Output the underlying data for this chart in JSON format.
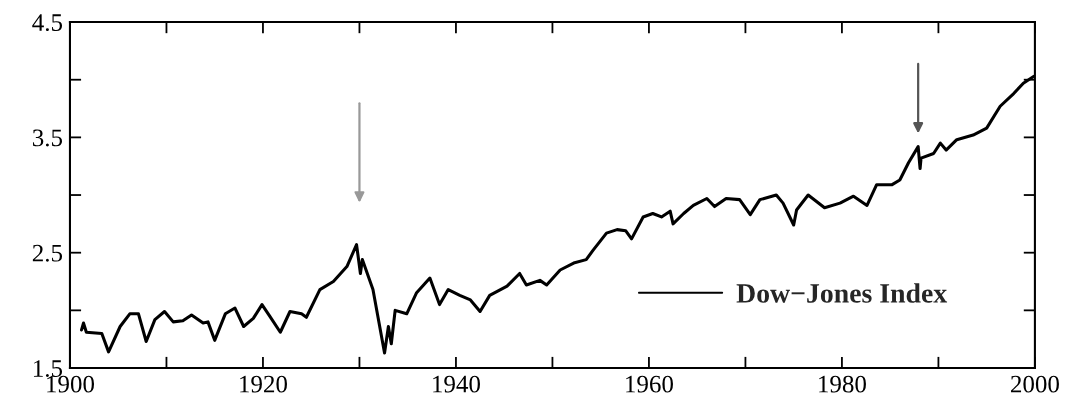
{
  "chart_data": {
    "type": "line",
    "x": [
      1901.2,
      1901.4,
      1901.7,
      1903.3,
      1904.0,
      1905.2,
      1906.2,
      1907.1,
      1907.9,
      1908.8,
      1909.8,
      1910.7,
      1911.7,
      1912.6,
      1913.8,
      1914.3,
      1915.0,
      1916.1,
      1917.1,
      1918.0,
      1919.0,
      1919.9,
      1920.7,
      1921.8,
      1922.8,
      1924.0,
      1924.5,
      1925.9,
      1927.3,
      1928.7,
      1929.7,
      1930.1,
      1930.3,
      1931.4,
      1932.6,
      1933.0,
      1933.3,
      1933.7,
      1934.9,
      1935.9,
      1937.3,
      1938.3,
      1939.2,
      1940.4,
      1941.5,
      1942.5,
      1943.5,
      1945.3,
      1946.6,
      1947.3,
      1948.7,
      1949.4,
      1950.8,
      1952.2,
      1953.5,
      1954.2,
      1955.6,
      1956.7,
      1957.6,
      1958.2,
      1959.4,
      1960.4,
      1961.3,
      1962.2,
      1962.5,
      1963.6,
      1964.6,
      1966.0,
      1966.8,
      1968.0,
      1969.4,
      1970.5,
      1971.5,
      1973.2,
      1973.9,
      1975.0,
      1975.3,
      1976.5,
      1978.2,
      1979.8,
      1981.2,
      1982.6,
      1983.6,
      1985.2,
      1986.0,
      1986.9,
      1987.9,
      1988.1,
      1988.2,
      1989.5,
      1990.2,
      1990.8,
      1991.9,
      1993.6,
      1995.0,
      1996.4,
      1997.8,
      1998.8,
      1999.9
    ],
    "series": [
      {
        "name": "Dow−Jones Index",
        "color": "#000000",
        "values": [
          1.83,
          1.89,
          1.81,
          1.8,
          1.64,
          1.86,
          1.97,
          1.97,
          1.73,
          1.92,
          1.99,
          1.9,
          1.91,
          1.96,
          1.89,
          1.9,
          1.74,
          1.97,
          2.02,
          1.86,
          1.93,
          2.05,
          1.95,
          1.81,
          1.99,
          1.97,
          1.94,
          2.18,
          2.25,
          2.38,
          2.57,
          2.32,
          2.44,
          2.18,
          1.63,
          1.86,
          1.71,
          2.0,
          1.97,
          2.15,
          2.28,
          2.05,
          2.18,
          2.13,
          2.09,
          1.99,
          2.13,
          2.21,
          2.32,
          2.22,
          2.26,
          2.22,
          2.35,
          2.41,
          2.44,
          2.52,
          2.67,
          2.7,
          2.69,
          2.62,
          2.81,
          2.84,
          2.81,
          2.86,
          2.75,
          2.84,
          2.91,
          2.97,
          2.9,
          2.97,
          2.96,
          2.83,
          2.96,
          3.0,
          2.93,
          2.74,
          2.87,
          3.0,
          2.89,
          2.93,
          2.99,
          2.91,
          3.09,
          3.09,
          3.13,
          3.28,
          3.42,
          3.23,
          3.32,
          3.36,
          3.45,
          3.39,
          3.48,
          3.52,
          3.58,
          3.77,
          3.88,
          3.97,
          4.03
        ]
      }
    ],
    "xlim": [
      1900,
      2000
    ],
    "xticks": [
      1900,
      {
        "value": 1910,
        "label": null
      },
      1920,
      {
        "value": 1930,
        "label": null
      },
      1940,
      {
        "value": 1950,
        "label": null
      },
      1960,
      {
        "value": 1970,
        "label": null
      },
      1980,
      {
        "value": 1990,
        "label": null
      },
      2000
    ],
    "ylim": [
      1.5,
      4.5
    ],
    "yticks": [
      1.5,
      {
        "value": 2,
        "label": null
      },
      2.5,
      {
        "value": 3,
        "label": null
      },
      3.5,
      {
        "value": 4,
        "label": null
      },
      4.5
    ],
    "legend": "bottom right",
    "marker": "none",
    "line_style": "solid"
  }
}
